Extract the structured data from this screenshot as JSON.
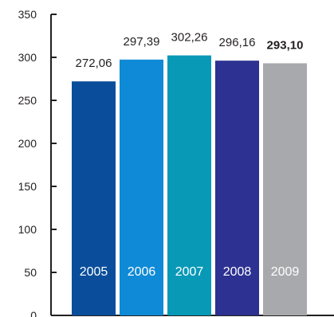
{
  "chart_data": {
    "type": "bar",
    "title": "",
    "xlabel": "",
    "ylabel": "",
    "ylim": [
      0,
      350
    ],
    "yticks": [
      0,
      50,
      100,
      150,
      200,
      250,
      300,
      350
    ],
    "ytick_labels": [
      "0",
      "50",
      "100",
      "150",
      "200",
      "250",
      "300",
      "350"
    ],
    "grid": false,
    "categories": [
      "2005",
      "2006",
      "2007",
      "2008",
      "2009"
    ],
    "values": [
      272.06,
      297.39,
      302.26,
      296.16,
      293.1
    ],
    "value_labels": [
      "272,06",
      "297,39",
      "302,26",
      "296,16",
      "293,10"
    ],
    "emphasized": [
      false,
      false,
      false,
      false,
      true
    ],
    "colors": [
      "#0a4e9b",
      "#0f8ad6",
      "#0899b7",
      "#2d3191",
      "#a7a9ac"
    ],
    "axis_color": "#231f20",
    "category_label_color": "#ffffff"
  }
}
